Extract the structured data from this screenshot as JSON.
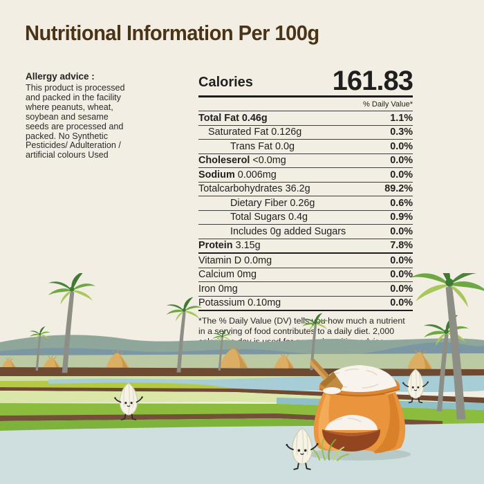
{
  "page": {
    "title": "Nutritional Information Per 100g",
    "colors": {
      "background": "#f3eee3",
      "title": "#4a3418",
      "text": "#1f1f1f",
      "rule": "#1c1c1c"
    }
  },
  "allergy": {
    "heading": "Allergy advice :",
    "body": "This product is processed\nand packed in the facility\nwhere peanuts, wheat,\nsoybean and sesame\nseeds are processed and\npacked. No Synthetic\nPesticides/ Adulteration /\nartificial colours Used"
  },
  "nutrition": {
    "calories_label": "Calories",
    "calories_value": "161.83",
    "daily_value_header": "% Daily Value*",
    "rows": [
      {
        "bold_text": "Total Fat 0.46g",
        "normal_text": "",
        "indent": 0,
        "value": "1.1%",
        "thick_after": false
      },
      {
        "bold_text": "",
        "normal_text": "Saturated Fat 0.126g",
        "indent": 1,
        "value": "0.3%",
        "thick_after": false
      },
      {
        "bold_text": "",
        "normal_text": "Trans Fat 0.0g",
        "indent": 2,
        "value": "0.0%",
        "thick_after": false
      },
      {
        "bold_text": "Choleserol",
        "normal_text": " <0.0mg",
        "indent": 0,
        "value": "0.0%",
        "thick_after": false
      },
      {
        "bold_text": "Sodium",
        "normal_text": " 0.006mg",
        "indent": 0,
        "value": "0.0%",
        "thick_after": false
      },
      {
        "bold_text": "",
        "normal_text": "Totalcarbohydrates 36.2g",
        "indent": 0,
        "value": "89.2%",
        "thick_after": false
      },
      {
        "bold_text": "",
        "normal_text": "Dietary Fiber 0.26g",
        "indent": 2,
        "value": "0.6%",
        "thick_after": false
      },
      {
        "bold_text": "",
        "normal_text": "Total Sugars 0.4g",
        "indent": 2,
        "value": "0.9%",
        "thick_after": false
      },
      {
        "bold_text": "",
        "normal_text": "Includes 0g added Sugars",
        "indent": 2,
        "value": "0.0%",
        "thick_after": false
      },
      {
        "bold_text": "Protein",
        "normal_text": " 3.15g",
        "indent": 0,
        "value": "7.8%",
        "thick_after": true
      },
      {
        "bold_text": "",
        "normal_text": "Vitamin D 0.0mg",
        "indent": 0,
        "value": "0.0%",
        "thick_after": false
      },
      {
        "bold_text": "",
        "normal_text": "Calcium 0mg",
        "indent": 0,
        "value": "0.0%",
        "thick_after": false
      },
      {
        "bold_text": "",
        "normal_text": "Iron 0mg",
        "indent": 0,
        "value": "0.0%",
        "thick_after": false
      },
      {
        "bold_text": "",
        "normal_text": "Potassium 0.10mg",
        "indent": 0,
        "value": "0.0%",
        "thick_after": true
      }
    ],
    "footnote": "*The % Daily Value (DV) tells you how much a nutrient\nin a serving of food contributes to a daily diet. 2,000\ncalories a day is used for general nutrition advise"
  },
  "scene": {
    "description": "Paddy-field landscape: palm trees, haystacks, mountains, river, striped rice fields, an orange sack of rice with a wooden scoop, a bowl of rice, rice plants and three cartoon rice-grain characters",
    "colors": {
      "ridge_far": "#7b97a4",
      "ridge_near": "#8ea79a",
      "plain": "#bccaa3",
      "haystack": "#dcae64",
      "palm_trunk": "#8d8e86",
      "palm_leaf": "#4a853b",
      "river": "#a7cdd7",
      "soil_band": "#6f4a33",
      "field_yellow_green": "#b5ca42",
      "field_pale_green": "#dbe7a9",
      "field_green": "#8cbc3e",
      "foreground_water": "#cfdfdf",
      "rice_bag": "#e8953e",
      "rice": "#f8f4ed",
      "bowl": "#93451f",
      "scoop": "#d7a258"
    }
  }
}
